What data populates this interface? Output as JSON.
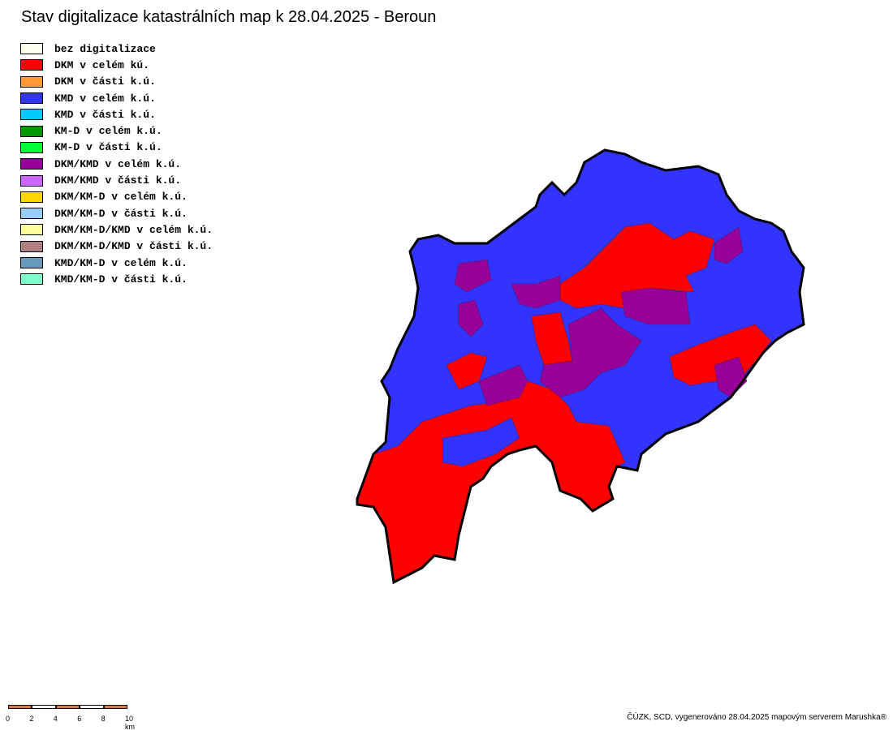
{
  "title": "Stav digitalizace katastrálních map k 28.04.2025 - Beroun",
  "legend": [
    {
      "label": "bez digitalizace",
      "color": "#ffffee"
    },
    {
      "label": "DKM v celém kú.",
      "color": "#ff0000"
    },
    {
      "label": "DKM v části k.ú.",
      "color": "#ff9933"
    },
    {
      "label": "KMD v celém k.ú.",
      "color": "#3333ff"
    },
    {
      "label": "KMD v části k.ú.",
      "color": "#00ccff"
    },
    {
      "label": "KM-D v celém k.ú.",
      "color": "#009900"
    },
    {
      "label": "KM-D v části k.ú.",
      "color": "#00ff33"
    },
    {
      "label": "DKM/KMD v celém k.ú.",
      "color": "#990099"
    },
    {
      "label": "DKM/KMD v části k.ú.",
      "color": "#cc66ff"
    },
    {
      "label": "DKM/KM-D v celém k.ú.",
      "color": "#ffd700"
    },
    {
      "label": "DKM/KM-D v části k.ú.",
      "color": "#99ccff"
    },
    {
      "label": "DKM/KM-D/KMD v celém k.ú.",
      "color": "#ffff99"
    },
    {
      "label": "DKM/KM-D/KMD v části k.ú.",
      "color": "#b08080"
    },
    {
      "label": "KMD/KM-D v celém k.ú.",
      "color": "#6699bb"
    },
    {
      "label": "KMD/KM-D v části k.ú.",
      "color": "#80ffcc"
    }
  ],
  "scale": {
    "labels": [
      "0",
      "2",
      "4",
      "6",
      "8",
      "10 km"
    ],
    "color": "#e07a3a"
  },
  "footer": "ČÚZK, SCD, vygenerováno 28.04.2025 mapovým serverem Marushka®"
}
